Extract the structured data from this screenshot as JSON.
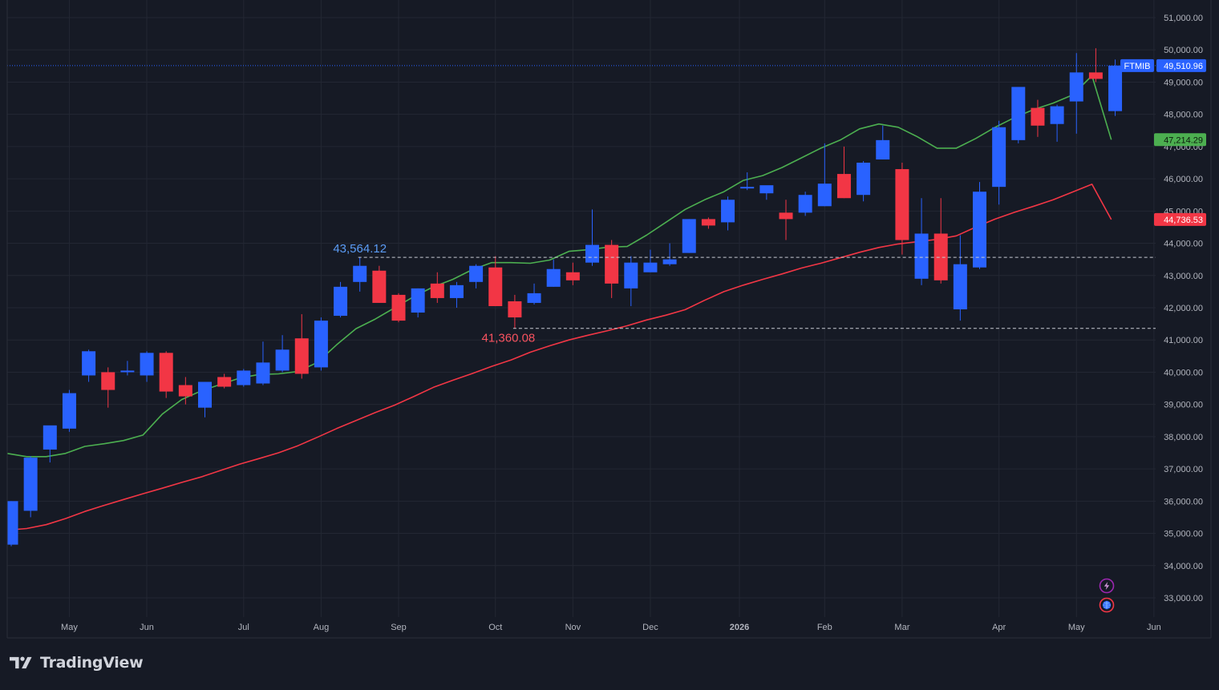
{
  "brand": {
    "name": "TradingView"
  },
  "colors": {
    "background": "#161a25",
    "panel": "#131722",
    "grid": "#232733",
    "up": "#2962ff",
    "down": "#f23645",
    "ma_fast": "#4caf50",
    "ma_slow": "#f23645",
    "axis_text": "#b2b5be"
  },
  "icons": [
    "lightning-icon",
    "globe-icon",
    "tradingview-logo-icon"
  ],
  "chart_data": {
    "type": "candlestick",
    "timeframe": "weekly",
    "symbol": "FTMIB",
    "last_price": "49,510.96",
    "ylim": [
      32500,
      51500
    ],
    "y_ticks": [
      {
        "value": 33000,
        "label": "33,000.00"
      },
      {
        "value": 34000,
        "label": "34,000.00"
      },
      {
        "value": 35000,
        "label": "35,000.00"
      },
      {
        "value": 36000,
        "label": "36,000.00"
      },
      {
        "value": 37000,
        "label": "37,000.00"
      },
      {
        "value": 38000,
        "label": "38,000.00"
      },
      {
        "value": 39000,
        "label": "39,000.00"
      },
      {
        "value": 40000,
        "label": "40,000.00"
      },
      {
        "value": 41000,
        "label": "41,000.00"
      },
      {
        "value": 42000,
        "label": "42,000.00"
      },
      {
        "value": 43000,
        "label": "43,000.00"
      },
      {
        "value": 44000,
        "label": "44,000.00"
      },
      {
        "value": 45000,
        "label": "45,000.00"
      },
      {
        "value": 46000,
        "label": "46,000.00"
      },
      {
        "value": 47000,
        "label": "47,000.00"
      },
      {
        "value": 48000,
        "label": "48,000.00"
      },
      {
        "value": 49000,
        "label": "49,000.00"
      },
      {
        "value": 50000,
        "label": "50,000.00"
      },
      {
        "value": 51000,
        "label": "51,000.00"
      }
    ],
    "x_ticks": [
      {
        "label": "May",
        "week": 3,
        "bold": false
      },
      {
        "label": "Jun",
        "week": 7,
        "bold": false
      },
      {
        "label": "Jul",
        "week": 12,
        "bold": false
      },
      {
        "label": "Aug",
        "week": 16,
        "bold": false
      },
      {
        "label": "Sep",
        "week": 20,
        "bold": false
      },
      {
        "label": "Oct",
        "week": 25,
        "bold": false
      },
      {
        "label": "Nov",
        "week": 29,
        "bold": false
      },
      {
        "label": "Dec",
        "week": 33,
        "bold": false
      },
      {
        "label": "2026",
        "week": 37.6,
        "bold": true
      },
      {
        "label": "Feb",
        "week": 42,
        "bold": false
      },
      {
        "label": "Mar",
        "week": 46,
        "bold": false
      },
      {
        "label": "Apr",
        "week": 51,
        "bold": false
      },
      {
        "label": "May",
        "week": 55,
        "bold": false
      },
      {
        "label": "Jun",
        "week": 59,
        "bold": false
      }
    ],
    "candles": [
      {
        "o": 34650,
        "h": 36000,
        "l": 34600,
        "c": 36000
      },
      {
        "o": 35700,
        "h": 37400,
        "l": 35500,
        "c": 37350
      },
      {
        "o": 37600,
        "h": 38300,
        "l": 37200,
        "c": 38350
      },
      {
        "o": 38250,
        "h": 39450,
        "l": 38150,
        "c": 39350
      },
      {
        "o": 39900,
        "h": 40700,
        "l": 39700,
        "c": 40650
      },
      {
        "o": 40000,
        "h": 40150,
        "l": 38900,
        "c": 39450
      },
      {
        "o": 40000,
        "h": 40350,
        "l": 39900,
        "c": 40050
      },
      {
        "o": 39900,
        "h": 40650,
        "l": 39700,
        "c": 40600
      },
      {
        "o": 40600,
        "h": 40650,
        "l": 39200,
        "c": 39400
      },
      {
        "o": 39600,
        "h": 39850,
        "l": 39000,
        "c": 39250
      },
      {
        "o": 38900,
        "h": 39700,
        "l": 38600,
        "c": 39700
      },
      {
        "o": 39850,
        "h": 39950,
        "l": 39500,
        "c": 39550
      },
      {
        "o": 39600,
        "h": 40100,
        "l": 39550,
        "c": 40050
      },
      {
        "o": 39650,
        "h": 40950,
        "l": 39600,
        "c": 40300
      },
      {
        "o": 40050,
        "h": 41150,
        "l": 40000,
        "c": 40700
      },
      {
        "o": 41050,
        "h": 41800,
        "l": 39800,
        "c": 39950
      },
      {
        "o": 40150,
        "h": 41700,
        "l": 40050,
        "c": 41600
      },
      {
        "o": 41750,
        "h": 42800,
        "l": 41700,
        "c": 42650
      },
      {
        "o": 42800,
        "h": 43564.12,
        "l": 42500,
        "c": 43300
      },
      {
        "o": 43150,
        "h": 43300,
        "l": 42150,
        "c": 42150
      },
      {
        "o": 42400,
        "h": 42450,
        "l": 41550,
        "c": 41600
      },
      {
        "o": 41850,
        "h": 42600,
        "l": 41700,
        "c": 42600
      },
      {
        "o": 42750,
        "h": 43100,
        "l": 42150,
        "c": 42300
      },
      {
        "o": 42300,
        "h": 42800,
        "l": 42000,
        "c": 42700
      },
      {
        "o": 42800,
        "h": 43350,
        "l": 42600,
        "c": 43300
      },
      {
        "o": 43250,
        "h": 43600,
        "l": 42050,
        "c": 42050
      },
      {
        "o": 42200,
        "h": 42400,
        "l": 41360.08,
        "c": 41700
      },
      {
        "o": 42150,
        "h": 42750,
        "l": 42100,
        "c": 42450
      },
      {
        "o": 42650,
        "h": 43500,
        "l": 42650,
        "c": 43200
      },
      {
        "o": 43100,
        "h": 43400,
        "l": 42700,
        "c": 42850
      },
      {
        "o": 43400,
        "h": 45050,
        "l": 43300,
        "c": 43950
      },
      {
        "o": 43950,
        "h": 44100,
        "l": 42300,
        "c": 42750
      },
      {
        "o": 42600,
        "h": 43600,
        "l": 42050,
        "c": 43400
      },
      {
        "o": 43100,
        "h": 43800,
        "l": 43100,
        "c": 43400
      },
      {
        "o": 43350,
        "h": 44000,
        "l": 43300,
        "c": 43500
      },
      {
        "o": 43700,
        "h": 44750,
        "l": 43700,
        "c": 44750
      },
      {
        "o": 44750,
        "h": 44800,
        "l": 44450,
        "c": 44550
      },
      {
        "o": 44650,
        "h": 45450,
        "l": 44400,
        "c": 45350
      },
      {
        "o": 45700,
        "h": 46200,
        "l": 45650,
        "c": 45750
      },
      {
        "o": 45550,
        "h": 45750,
        "l": 45350,
        "c": 45800
      },
      {
        "o": 44950,
        "h": 45350,
        "l": 44100,
        "c": 44750
      },
      {
        "o": 44950,
        "h": 45600,
        "l": 44850,
        "c": 45500
      },
      {
        "o": 45150,
        "h": 47100,
        "l": 45150,
        "c": 45850
      },
      {
        "o": 46150,
        "h": 47000,
        "l": 45400,
        "c": 45400
      },
      {
        "o": 45500,
        "h": 46550,
        "l": 45300,
        "c": 46500
      },
      {
        "o": 46600,
        "h": 47650,
        "l": 46600,
        "c": 47200
      },
      {
        "o": 46300,
        "h": 46500,
        "l": 43650,
        "c": 44100
      },
      {
        "o": 42900,
        "h": 45400,
        "l": 42700,
        "c": 44300
      },
      {
        "o": 44300,
        "h": 45400,
        "l": 42750,
        "c": 42850
      },
      {
        "o": 41950,
        "h": 44250,
        "l": 41600,
        "c": 43350
      },
      {
        "o": 43250,
        "h": 45900,
        "l": 43200,
        "c": 45600
      },
      {
        "o": 45750,
        "h": 47800,
        "l": 45200,
        "c": 47600
      },
      {
        "o": 47200,
        "h": 48850,
        "l": 47100,
        "c": 48850
      },
      {
        "o": 48200,
        "h": 48450,
        "l": 47300,
        "c": 47650
      },
      {
        "o": 47700,
        "h": 48300,
        "l": 47150,
        "c": 48250
      },
      {
        "o": 48400,
        "h": 49900,
        "l": 47400,
        "c": 49300
      },
      {
        "o": 49300,
        "h": 50050,
        "l": 49000,
        "c": 49100
      },
      {
        "o": 48100,
        "h": 49700,
        "l": 47950,
        "c": 49510.96
      }
    ],
    "series": [
      {
        "name": "",
        "color": "#4caf50",
        "last_label": "47,214.29",
        "values": [
          37480,
          37380,
          37380,
          37480,
          37700,
          37780,
          37880,
          38050,
          38700,
          39150,
          39420,
          39620,
          39820,
          39930,
          39950,
          40020,
          40300,
          40850,
          41350,
          41650,
          42000,
          42350,
          42650,
          42880,
          43180,
          43400,
          43400,
          43380,
          43480,
          43750,
          43800,
          43880,
          43900,
          44250,
          44650,
          45050,
          45350,
          45600,
          45950,
          46100,
          46350,
          46650,
          46950,
          47200,
          47550,
          47700,
          47600,
          47300,
          46950,
          46950,
          47250,
          47600,
          47900,
          48150,
          48350,
          48600,
          49200,
          47214.29
        ]
      },
      {
        "name": "",
        "color": "#f23645",
        "last_label": "44,736.53",
        "values": [
          35100,
          35150,
          35270,
          35460,
          35680,
          35870,
          36050,
          36230,
          36400,
          36580,
          36750,
          36950,
          37150,
          37320,
          37500,
          37720,
          37980,
          38250,
          38500,
          38750,
          38980,
          39250,
          39530,
          39750,
          39960,
          40180,
          40380,
          40620,
          40820,
          41000,
          41150,
          41290,
          41440,
          41620,
          41770,
          41940,
          42230,
          42500,
          42700,
          42880,
          43050,
          43230,
          43380,
          43550,
          43720,
          43870,
          43980,
          44050,
          44120,
          44230,
          44500,
          44750,
          44960,
          45150,
          45350,
          45590,
          45830,
          44736.53
        ]
      }
    ],
    "annotations": [
      {
        "label": "43,564.12",
        "value": 43564.12,
        "week": 18,
        "color": "#5b9cf6",
        "type": "high"
      },
      {
        "label": "41,360.08",
        "value": 41360.08,
        "week": 26,
        "color": "#f7525f",
        "type": "low"
      }
    ]
  }
}
